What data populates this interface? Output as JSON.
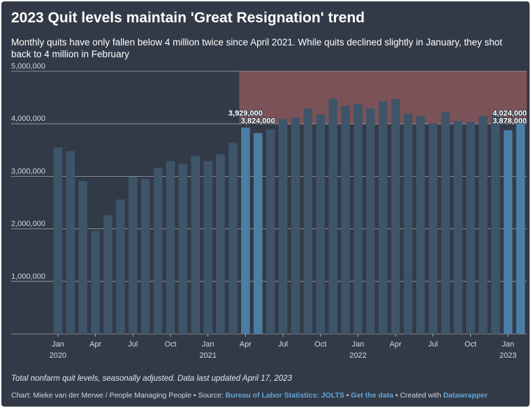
{
  "chart_data": {
    "type": "bar",
    "title": "2023 Quit levels maintain 'Great Resignation' trend",
    "subtitle": "Monthly quits have only fallen below 4 million twice since April 2021. While quits declined slightly in January, they shot back to 4 million in February",
    "categories": [
      "Jan 2020",
      "Feb 2020",
      "Mar 2020",
      "Apr 2020",
      "May 2020",
      "Jun 2020",
      "Jul 2020",
      "Aug 2020",
      "Sep 2020",
      "Oct 2020",
      "Nov 2020",
      "Dec 2020",
      "Jan 2021",
      "Feb 2021",
      "Mar 2021",
      "Apr 2021",
      "May 2021",
      "Jun 2021",
      "Jul 2021",
      "Aug 2021",
      "Sep 2021",
      "Oct 2021",
      "Nov 2021",
      "Dec 2021",
      "Jan 2022",
      "Feb 2022",
      "Mar 2022",
      "Apr 2022",
      "May 2022",
      "Jun 2022",
      "Jul 2022",
      "Aug 2022",
      "Sep 2022",
      "Oct 2022",
      "Nov 2022",
      "Dec 2022",
      "Jan 2023",
      "Feb 2023"
    ],
    "values": [
      3550000,
      3480000,
      2910000,
      1960000,
      2260000,
      2560000,
      2990000,
      2950000,
      3160000,
      3290000,
      3240000,
      3390000,
      3290000,
      3420000,
      3640000,
      3929000,
      3824000,
      3890000,
      4090000,
      4120000,
      4290000,
      4180000,
      4480000,
      4340000,
      4380000,
      4290000,
      4430000,
      4470000,
      4190000,
      4150000,
      4010000,
      4230000,
      4050000,
      4030000,
      4150000,
      4150000,
      3878000,
      4024000
    ],
    "highlighted": [
      "Apr 2021",
      "May 2021",
      "Jan 2023",
      "Feb 2023"
    ],
    "data_labels": [
      {
        "category": "Apr 2021",
        "text": "3,929,000"
      },
      {
        "category": "May 2021",
        "text": "3,824,000"
      },
      {
        "category": "Feb 2023",
        "text": "4,024,000"
      },
      {
        "category": "Jan 2023",
        "text": "3,878,000"
      }
    ],
    "shaded_range": {
      "from": "Apr 2021",
      "to": "Feb 2023",
      "y_from": 4000000,
      "y_to": 5000000
    },
    "ylim": [
      0,
      5000000
    ],
    "yticks": [
      {
        "value": 1000000,
        "label": "1,000,000"
      },
      {
        "value": 2000000,
        "label": "2,000,000"
      },
      {
        "value": 3000000,
        "label": "3,000,000"
      },
      {
        "value": 4000000,
        "label": "4,000,000"
      },
      {
        "value": 5000000,
        "label": "5,000,000"
      }
    ],
    "xticks": [
      {
        "category": "Jan 2020",
        "label": "Jan",
        "year": "2020"
      },
      {
        "category": "Apr 2020",
        "label": "Apr"
      },
      {
        "category": "Jul 2020",
        "label": "Jul"
      },
      {
        "category": "Oct 2020",
        "label": "Oct"
      },
      {
        "category": "Jan 2021",
        "label": "Jan",
        "year": "2021"
      },
      {
        "category": "Apr 2021",
        "label": "Apr"
      },
      {
        "category": "Jul 2021",
        "label": "Jul"
      },
      {
        "category": "Oct 2021",
        "label": "Oct"
      },
      {
        "category": "Jan 2022",
        "label": "Jan",
        "year": "2022"
      },
      {
        "category": "Apr 2022",
        "label": "Apr"
      },
      {
        "category": "Jul 2022",
        "label": "Jul"
      },
      {
        "category": "Oct 2022",
        "label": "Oct"
      },
      {
        "category": "Jan 2023",
        "label": "Jan",
        "year": "2023"
      }
    ],
    "xlabel": "",
    "ylabel": "",
    "colors": {
      "background": "#333a47",
      "bar": "#3e5469",
      "bar_highlight": "#4b7ea5",
      "shade": "#7b5257",
      "grid": "#c8ccd2",
      "text": "#ffffff",
      "axis_text": "#d4d7dc",
      "link": "#5fa8d8"
    }
  },
  "notes": "Total nonfarm quit levels, seasonally adjusted. Data last updated April 17, 2023",
  "footer": {
    "prefix": "Chart: Mieke van der Merwe / People Managing People • Source: ",
    "source_link": "Bureau of Labor Statistics: JOLTS",
    "sep1": " • ",
    "data_link": "Get the data",
    "sep2": " • Created with ",
    "tool_link": "Datawrapper"
  }
}
